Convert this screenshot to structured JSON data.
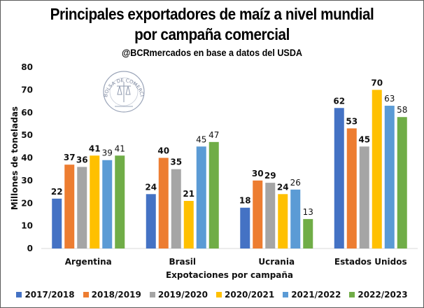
{
  "chart_data": {
    "type": "bar",
    "title": "Principales exportadores de maíz a nivel mundial",
    "title_line2": "por campaña comercial",
    "subtitle": "@BCRmercados en base a datos del USDA",
    "xlabel": "Expotaciones por campaña",
    "ylabel": "Millones de toneladas",
    "ylim": [
      0,
      80
    ],
    "yticks": [
      0,
      10,
      20,
      30,
      40,
      50,
      60,
      70,
      80
    ],
    "grid": false,
    "legend_position": "bottom",
    "categories": [
      "Argentina",
      "Brasil",
      "Ucrania",
      "Estados Unidos"
    ],
    "series": [
      {
        "name": "2017/2018",
        "color": "#4472C4",
        "label_bold": true,
        "values": [
          22,
          24,
          18,
          62
        ]
      },
      {
        "name": "2018/2019",
        "color": "#ED7D31",
        "label_bold": true,
        "values": [
          37,
          40,
          30,
          53
        ]
      },
      {
        "name": "2019/2020",
        "color": "#A5A5A5",
        "label_bold": true,
        "values": [
          36,
          35,
          29,
          45
        ]
      },
      {
        "name": "2020/2021",
        "color": "#FFC000",
        "label_bold": true,
        "values": [
          41,
          21,
          24,
          70
        ]
      },
      {
        "name": "2021/2022",
        "color": "#5B9BD5",
        "label_bold": false,
        "values": [
          39,
          45,
          26,
          63
        ]
      },
      {
        "name": "2022/2023",
        "color": "#70AD47",
        "label_bold": false,
        "values": [
          41,
          47,
          13,
          58
        ]
      }
    ]
  },
  "logo": {
    "text": "BOLSA DE COMERCIO DE ROSARIO"
  }
}
